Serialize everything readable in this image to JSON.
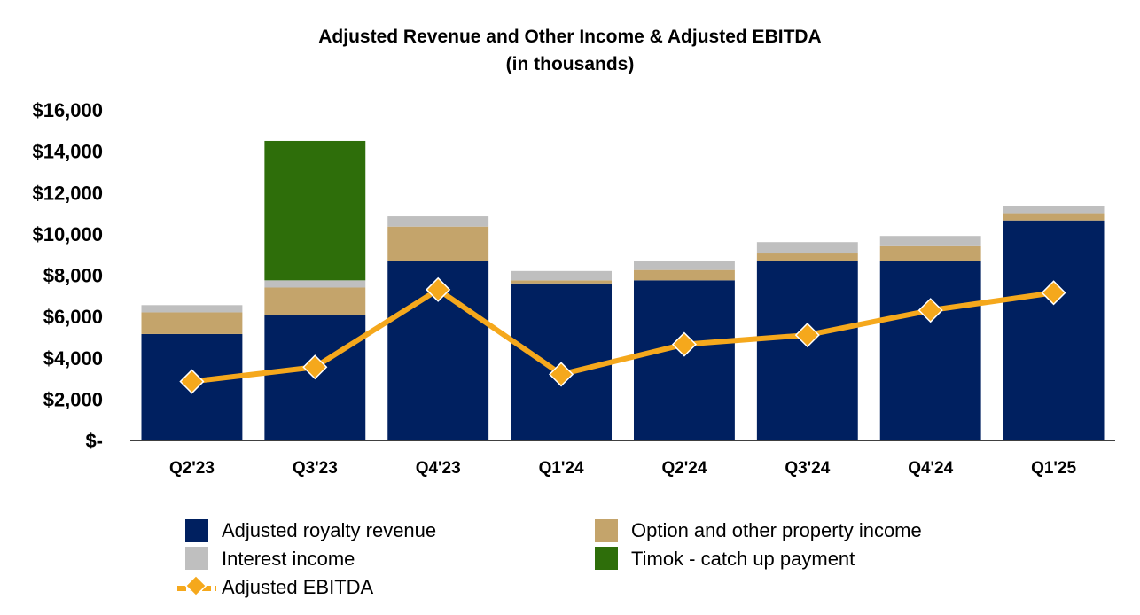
{
  "chart_data": {
    "type": "bar",
    "stacked": true,
    "title": "Adjusted Revenue and Other Income & Adjusted EBITDA",
    "subtitle": "(in thousands)",
    "categories": [
      "Q2'23",
      "Q3'23",
      "Q4'23",
      "Q1'24",
      "Q2'24",
      "Q3'24",
      "Q4'24",
      "Q1'25"
    ],
    "ylim": [
      0,
      16000
    ],
    "yticks": [
      0,
      2000,
      4000,
      6000,
      8000,
      10000,
      12000,
      14000,
      16000
    ],
    "ytick_labels": [
      "$-",
      "$2,000",
      "$4,000",
      "$6,000",
      "$8,000",
      "$10,000",
      "$12,000",
      "$14,000",
      "$16,000"
    ],
    "grid": false,
    "legend_position": "bottom",
    "series": [
      {
        "name": "Adjusted royalty revenue",
        "kind": "bar",
        "color": "#002060",
        "values": [
          5150,
          6050,
          8700,
          7600,
          7750,
          8700,
          8700,
          10650
        ]
      },
      {
        "name": "Option and other property income",
        "kind": "bar",
        "color": "#C4A46B",
        "values": [
          1050,
          1350,
          1650,
          150,
          500,
          350,
          700,
          350
        ]
      },
      {
        "name": "Interest income",
        "kind": "bar",
        "color": "#BFBFBF",
        "values": [
          350,
          350,
          500,
          450,
          450,
          550,
          500,
          350
        ]
      },
      {
        "name": "Timok - catch up payment",
        "kind": "bar",
        "color": "#2E6E0A",
        "values": [
          0,
          6750,
          0,
          0,
          0,
          0,
          0,
          0
        ]
      },
      {
        "name": "Adjusted EBITDA",
        "kind": "line",
        "color": "#F5A81C",
        "values": [
          2850,
          3550,
          7300,
          3200,
          4650,
          5100,
          6300,
          7150
        ]
      }
    ]
  }
}
